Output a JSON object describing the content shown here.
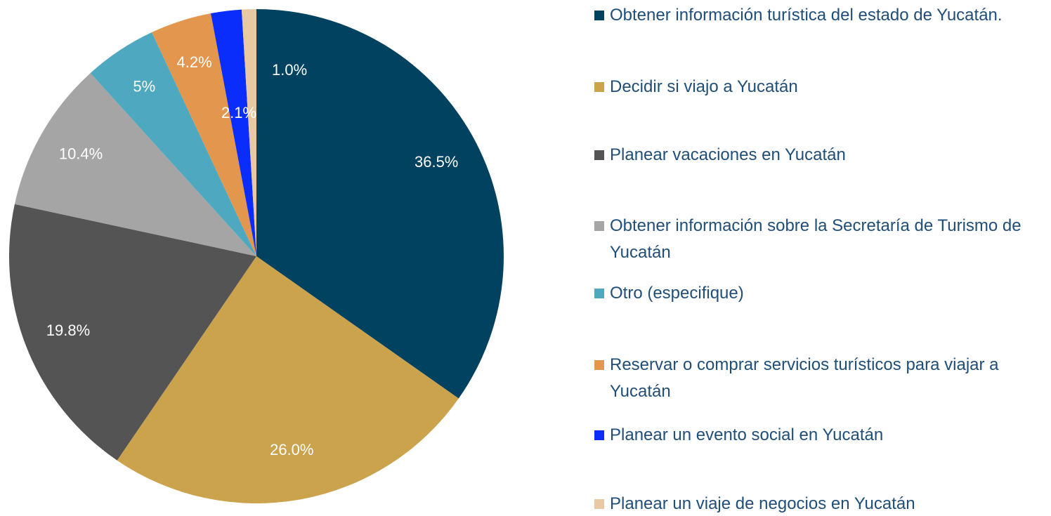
{
  "chart_data": {
    "type": "pie",
    "categories": [
      "Obtener información turística del estado de Yucatán.",
      "Decidir si viajo a Yucatán",
      "Planear vacaciones en Yucatán",
      "Obtener información sobre la Secretaría de Turismo de Yucatán",
      "Otro (especifique)",
      "Reservar o comprar servicios turísticos para viajar a Yucatán",
      "Planear un evento social en Yucatán",
      "Planear un viaje de negocios en Yucatán"
    ],
    "values": [
      36.5,
      26.0,
      19.8,
      10.4,
      5,
      4.2,
      2.1,
      1.0
    ],
    "value_labels": [
      "36.5%",
      "26.0%",
      "19.8%",
      "10.4%",
      "5%",
      "4.2%",
      "2.1%",
      "1.0%"
    ],
    "colors": [
      "#00425f",
      "#cca34d",
      "#545454",
      "#a5a5a5",
      "#4ea8bf",
      "#e3964d",
      "#0a2dfb",
      "#e8c9a3"
    ],
    "legend": "right"
  }
}
